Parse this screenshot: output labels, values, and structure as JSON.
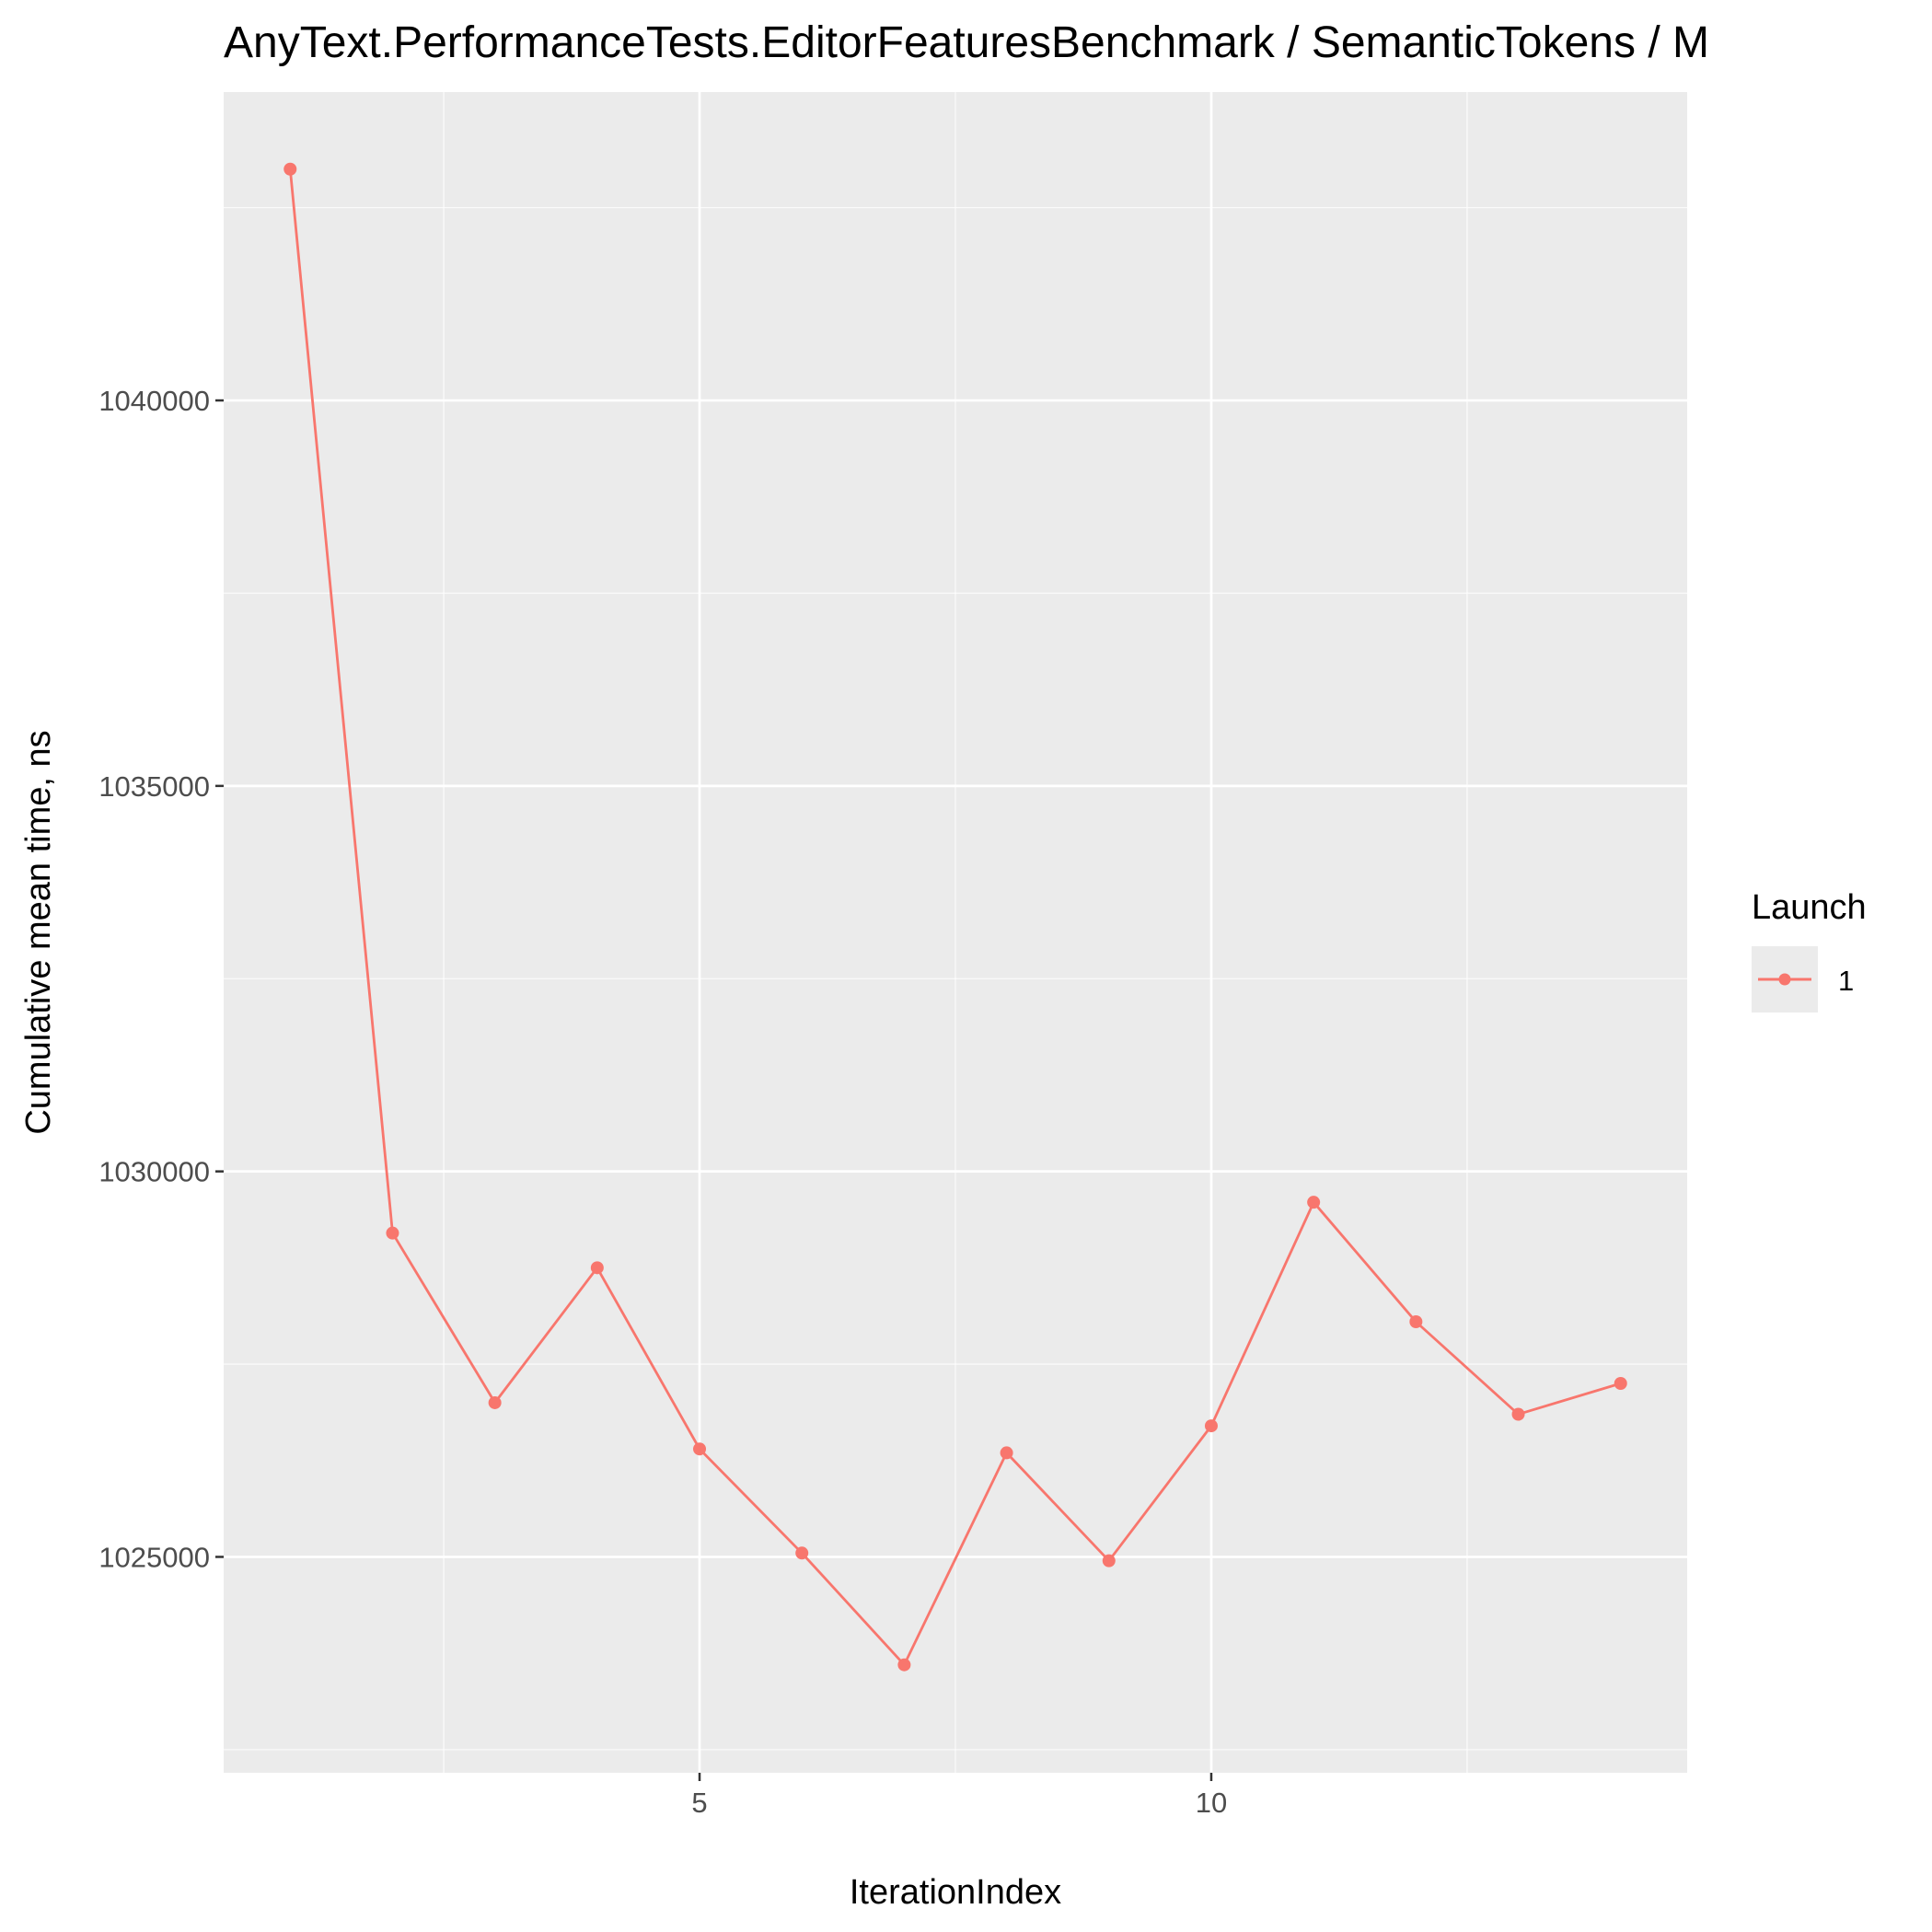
{
  "colors": {
    "panel_background": "#ebebeb",
    "grid_major": "#ffffff",
    "grid_minor": "#f5f5f5",
    "series_1": "#f8766d",
    "tick_text": "#4d4d4d"
  },
  "chart_data": {
    "type": "line",
    "title": "AnyText.PerformanceTests.EditorFeaturesBenchmark / SemanticTokens / M",
    "xlabel": "IterationIndex",
    "ylabel": "Cumulative mean time, ns",
    "x_ticks": [
      5,
      10
    ],
    "y_ticks": [
      1025000,
      1030000,
      1035000,
      1040000
    ],
    "xlim": [
      0.35,
      14.65
    ],
    "ylim": [
      1022200,
      1044000
    ],
    "grid": true,
    "legend": {
      "title": "Launch",
      "position": "right",
      "entries": [
        "1"
      ]
    },
    "series": [
      {
        "name": "1",
        "x": [
          1,
          2,
          3,
          4,
          5,
          6,
          7,
          8,
          9,
          10,
          11,
          12,
          13,
          14
        ],
        "values": [
          1043000,
          1029200,
          1027000,
          1028750,
          1026400,
          1025050,
          1023600,
          1026350,
          1024950,
          1026700,
          1029600,
          1028050,
          1026850,
          1027250
        ]
      }
    ]
  }
}
